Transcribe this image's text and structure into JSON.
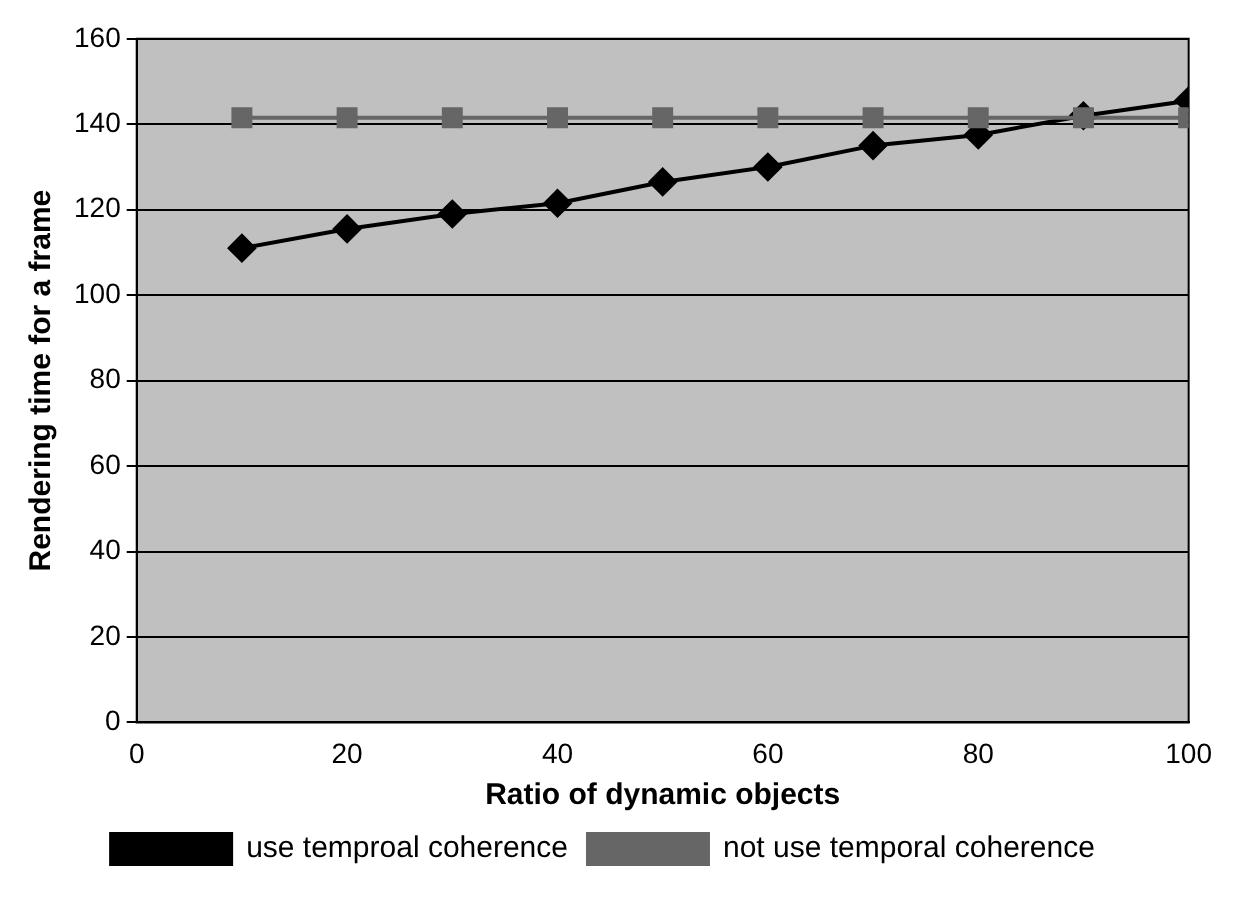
{
  "chart_data": {
    "type": "line",
    "xlabel": "Ratio of dynamic objects",
    "ylabel": "Rendering time for a frame",
    "x": [
      10,
      20,
      30,
      40,
      50,
      60,
      70,
      80,
      90,
      100
    ],
    "series": [
      {
        "name": "use temproal coherence",
        "color": "#000000",
        "marker": "diamond",
        "values": [
          111,
          115.5,
          119,
          121.5,
          126.5,
          130,
          135,
          137.5,
          142,
          145.5
        ]
      },
      {
        "name": "not use temporal coherence",
        "color": "#666666",
        "marker": "square",
        "values": [
          141.5,
          141.5,
          141.5,
          141.5,
          141.5,
          141.5,
          141.5,
          141.5,
          141.5,
          141.5
        ]
      }
    ],
    "xlim": [
      0,
      100
    ],
    "xticks": [
      0,
      20,
      40,
      60,
      80,
      100
    ],
    "ylim": [
      0,
      160
    ],
    "yticks": [
      0,
      20,
      40,
      60,
      80,
      100,
      120,
      140,
      160
    ],
    "grid": "y",
    "legend": "bottom",
    "line_style": "solid"
  }
}
